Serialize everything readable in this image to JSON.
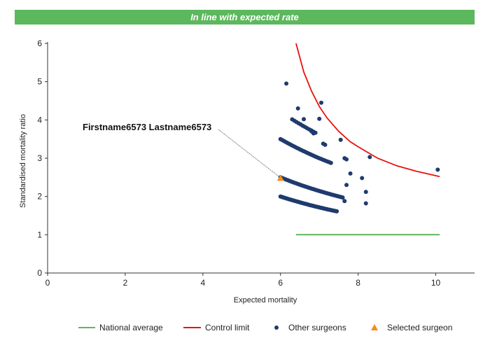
{
  "banner": {
    "text": "In line with expected rate"
  },
  "colors": {
    "banner_bg": "#5cb85c",
    "national_average": "#5cb85c",
    "control_limit": "#e8120c",
    "other_surgeons": "#1f3b6e",
    "selected_surgeon": "#f28e1c"
  },
  "chart_data": {
    "type": "scatter",
    "xlabel": "Expected mortality",
    "ylabel": "Standardised mortality ratio",
    "xlim": [
      0,
      11
    ],
    "ylim": [
      0,
      6
    ],
    "x_ticks": [
      0,
      2,
      4,
      6,
      8,
      10
    ],
    "y_ticks": [
      0,
      1,
      2,
      3,
      4,
      5,
      6
    ],
    "grid": false,
    "legend_position": "bottom",
    "legend": [
      "National average",
      "Control limit",
      "Other surgeons",
      "Selected surgeon"
    ],
    "series": [
      {
        "name": "National average",
        "kind": "line",
        "points": [
          [
            6.4,
            1.0
          ],
          [
            10.1,
            1.0
          ]
        ]
      },
      {
        "name": "Control limit",
        "kind": "line",
        "points": [
          [
            6.4,
            6.0
          ],
          [
            6.6,
            5.25
          ],
          [
            6.8,
            4.75
          ],
          [
            7.0,
            4.35
          ],
          [
            7.2,
            4.05
          ],
          [
            7.5,
            3.7
          ],
          [
            7.8,
            3.43
          ],
          [
            8.0,
            3.3
          ],
          [
            8.5,
            3.0
          ],
          [
            9.0,
            2.8
          ],
          [
            9.5,
            2.66
          ],
          [
            10.1,
            2.52
          ]
        ]
      },
      {
        "name": "Other surgeons",
        "kind": "scatter",
        "arcs": [
          {
            "k": 12.0,
            "x_from": 6.0,
            "x_to": 7.45,
            "count": 52
          },
          {
            "k": 15.0,
            "x_from": 6.0,
            "x_to": 7.6,
            "count": 48
          },
          {
            "k": 21.0,
            "x_from": 6.0,
            "x_to": 7.3,
            "count": 32
          },
          {
            "k": 25.3,
            "x_from": 6.3,
            "x_to": 6.9,
            "count": 12
          }
        ],
        "points": [
          [
            6.15,
            4.95
          ],
          [
            6.45,
            4.3
          ],
          [
            7.05,
            4.45
          ],
          [
            6.6,
            4.02
          ],
          [
            7.0,
            4.03
          ],
          [
            6.8,
            3.7
          ],
          [
            6.85,
            3.65
          ],
          [
            7.1,
            3.38
          ],
          [
            7.15,
            3.35
          ],
          [
            7.55,
            3.48
          ],
          [
            7.65,
            3.0
          ],
          [
            7.7,
            2.97
          ],
          [
            8.3,
            3.03
          ],
          [
            7.8,
            2.6
          ],
          [
            8.1,
            2.48
          ],
          [
            7.7,
            2.3
          ],
          [
            8.2,
            2.12
          ],
          [
            7.65,
            1.88
          ],
          [
            8.2,
            1.82
          ],
          [
            10.05,
            2.7
          ]
        ]
      },
      {
        "name": "Selected surgeon",
        "kind": "scatter",
        "points": [
          [
            6.0,
            2.48
          ]
        ]
      }
    ],
    "annotations": [
      {
        "text": "Firstname6573 Lastname6573",
        "target": [
          6.0,
          2.48
        ]
      }
    ]
  }
}
